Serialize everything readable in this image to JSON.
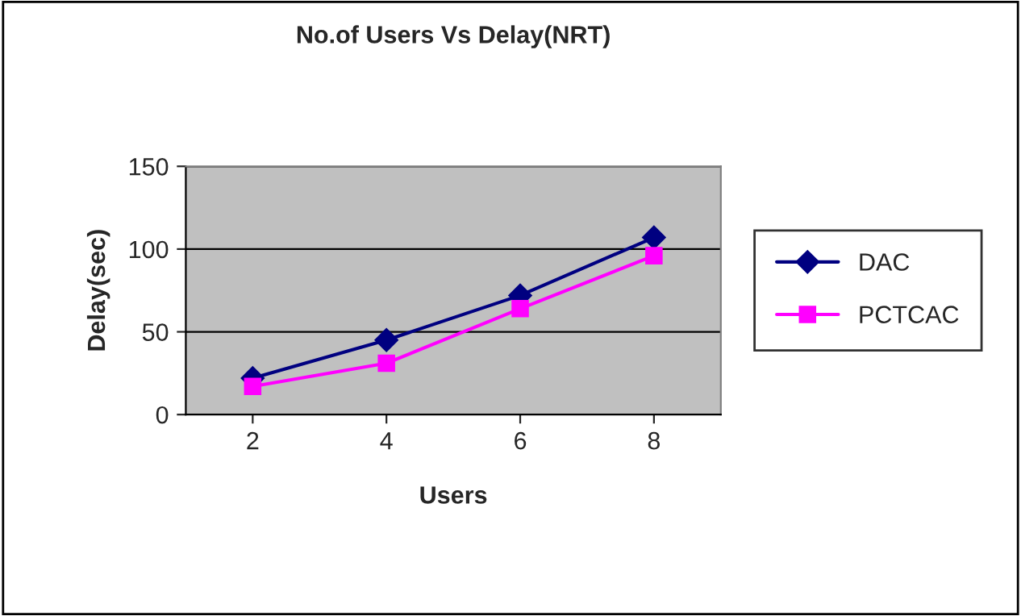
{
  "chart_data": {
    "type": "line",
    "title": "No.of Users Vs Delay(NRT)",
    "xlabel": "Users",
    "ylabel": "Delay(sec)",
    "categories": [
      "2",
      "4",
      "6",
      "8"
    ],
    "series": [
      {
        "name": "DAC",
        "color": "#000080",
        "values": [
          22,
          45,
          72,
          107
        ],
        "marker": "diamond"
      },
      {
        "name": "PCTCAC",
        "color": "#ff00ff",
        "values": [
          17,
          31,
          64,
          96
        ],
        "marker": "square"
      }
    ],
    "ylim": [
      0,
      150
    ],
    "yticks": [
      0,
      50,
      100,
      150
    ],
    "grid": "y",
    "legend": "right",
    "line_style": "solid"
  }
}
